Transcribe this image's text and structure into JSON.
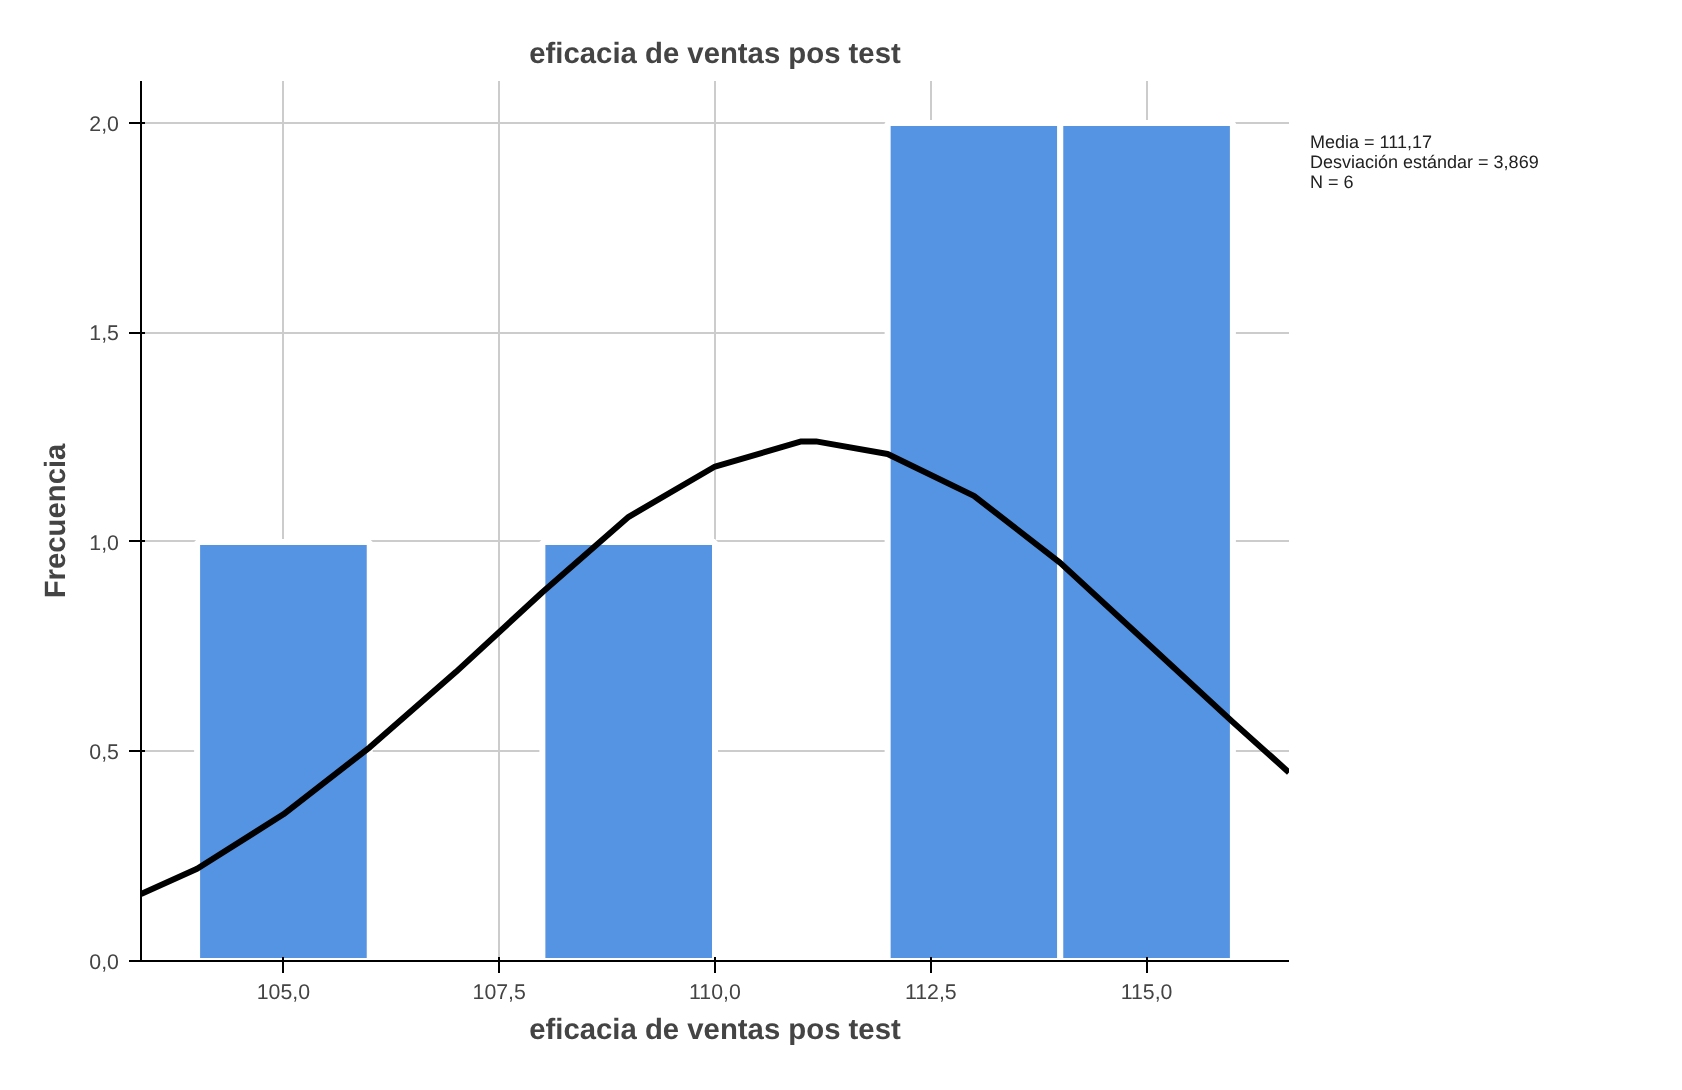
{
  "chart_data": {
    "type": "histogram",
    "title": "eficacia de ventas pos test",
    "xlabel": "eficacia de ventas pos test",
    "ylabel": "Frecuencia",
    "bins": [
      104,
      106,
      108,
      110,
      112,
      114,
      116
    ],
    "values": [
      1,
      0,
      1,
      0,
      2,
      2
    ],
    "color": "#5593e3",
    "series": [
      {
        "type": "line",
        "color": "#000000",
        "x": [
          103.35,
          104,
          105,
          106,
          107,
          108,
          109,
          110,
          111,
          111.17,
          112,
          113,
          114,
          115,
          116,
          116.65
        ],
        "values": [
          0.16,
          0.22,
          0.35,
          0.51,
          0.69,
          0.88,
          1.06,
          1.18,
          1.24,
          1.24,
          1.21,
          1.11,
          0.95,
          0.76,
          0.57,
          0.45
        ]
      }
    ],
    "xlim": [
      103.35,
      116.65
    ],
    "ylim": [
      0,
      2.1
    ],
    "xticks": [
      {
        "value": 105,
        "label": "105,0"
      },
      {
        "value": 107.5,
        "label": "107,5"
      },
      {
        "value": 110,
        "label": "110,0"
      },
      {
        "value": 112.5,
        "label": "112,5"
      },
      {
        "value": 115,
        "label": "115,0"
      }
    ],
    "yticks": [
      {
        "value": 0,
        "label": "0,0"
      },
      {
        "value": 0.5,
        "label": "0,5"
      },
      {
        "value": 1,
        "label": "1,0"
      },
      {
        "value": 1.5,
        "label": "1,5"
      },
      {
        "value": 2,
        "label": "2,0"
      }
    ],
    "grid": true,
    "annotations": [
      "Media = 111,17",
      "Desviación estándar = 3,869",
      "N = 6"
    ]
  }
}
